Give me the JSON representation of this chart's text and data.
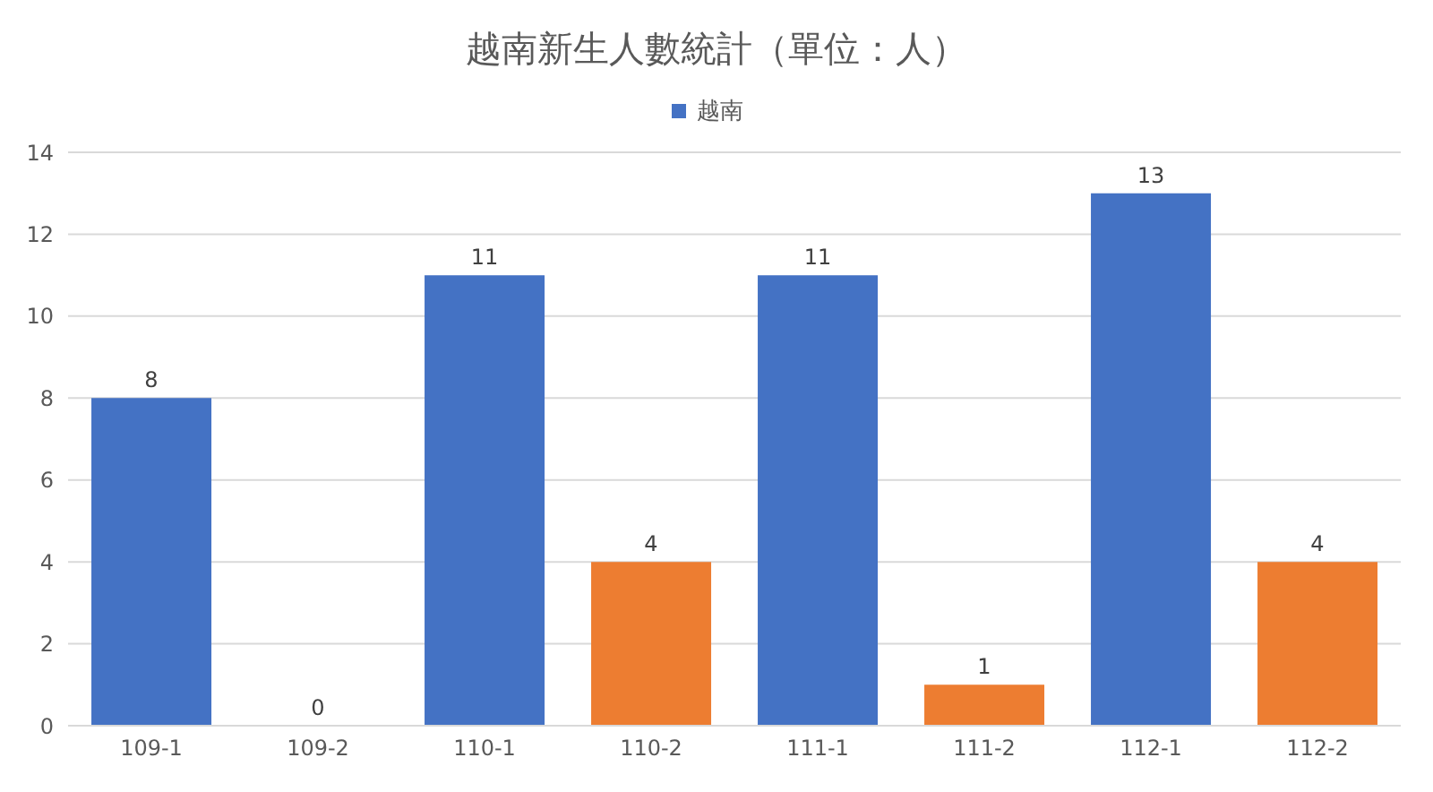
{
  "chart_data": {
    "type": "bar",
    "title": "越南新生人數統計（單位：人）",
    "categories": [
      "109-1",
      "109-2",
      "110-1",
      "110-2",
      "111-1",
      "111-2",
      "112-1",
      "112-2"
    ],
    "series": [
      {
        "name": "越南",
        "color": "#4472c4",
        "colors": [
          "#4472c4",
          "#4472c4",
          "#4472c4",
          "#ed7d31",
          "#4472c4",
          "#ed7d31",
          "#4472c4",
          "#ed7d31"
        ],
        "values": [
          8,
          0,
          11,
          4,
          11,
          1,
          13,
          4
        ]
      }
    ],
    "ylim": [
      0,
      14
    ],
    "yticks": [
      0,
      2,
      4,
      6,
      8,
      10,
      12,
      14
    ],
    "grid": "y",
    "legend": "top",
    "data_labels": true
  }
}
